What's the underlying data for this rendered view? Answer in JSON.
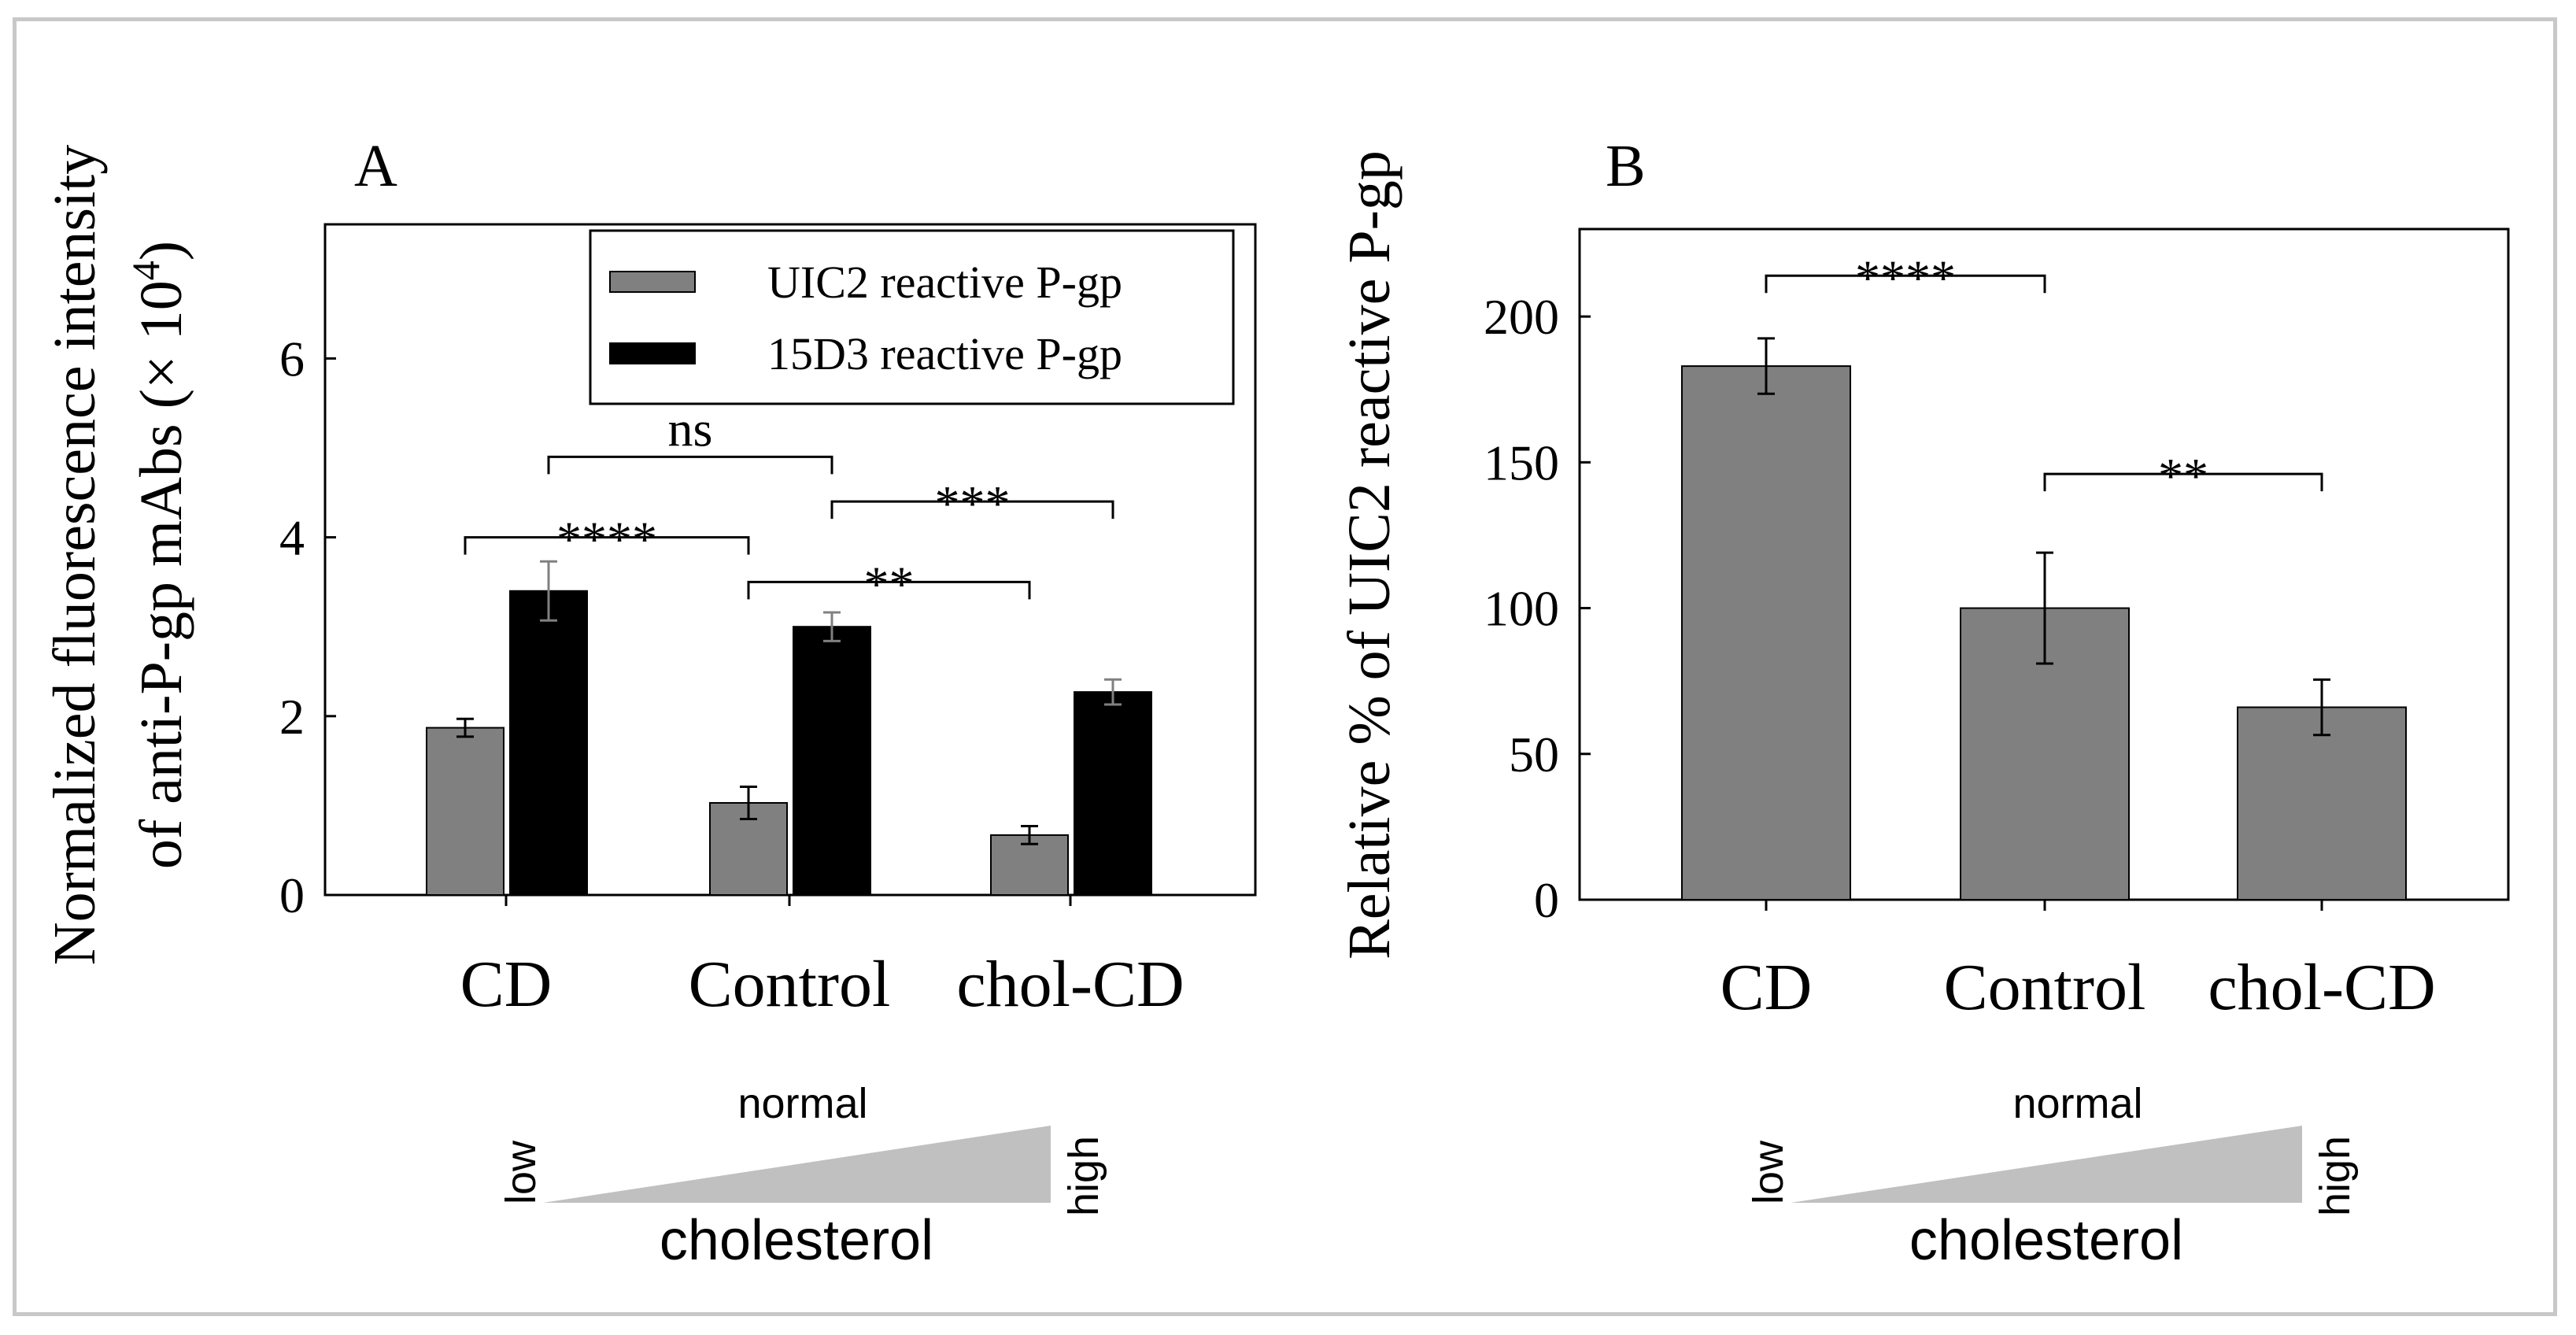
{
  "chart_data": [
    {
      "type": "bar",
      "panel_label": "A",
      "title": "",
      "xlabel": "",
      "ylabel_line1": "Normalized fluorescence intensity",
      "ylabel_line2": "of anti-P-gp mAbs (× 10",
      "ylabel_sup": "4",
      "ylabel_end": ")",
      "categories": [
        "CD",
        "Control",
        "chol-CD"
      ],
      "ylim": [
        0,
        7.5
      ],
      "yticks": [
        "0",
        "2",
        "4",
        "6"
      ],
      "series": [
        {
          "name": "UIC2 reactive P-gp",
          "color": "#808080",
          "values": [
            1.87,
            1.03,
            0.67
          ],
          "errors": [
            0.1,
            0.18,
            0.1
          ]
        },
        {
          "name": "15D3 reactive P-gp",
          "color": "#000000",
          "values": [
            3.4,
            3.0,
            2.27
          ],
          "errors": [
            0.33,
            0.16,
            0.14
          ]
        }
      ],
      "significance": [
        {
          "label": "ns",
          "from": "CD 15D3",
          "to": "Control 15D3",
          "level": 4.9
        },
        {
          "label": "****",
          "from": "CD UIC2",
          "to": "Control UIC2",
          "level": 4.0
        },
        {
          "label": "***",
          "from": "Control 15D3",
          "to": "chol-CD 15D3",
          "level": 4.4
        },
        {
          "label": "**",
          "from": "Control UIC2",
          "to": "chol-CD UIC2",
          "level": 3.5
        }
      ],
      "gradient": {
        "low": "low",
        "normal": "normal",
        "high": "high",
        "caption": "cholesterol"
      }
    },
    {
      "type": "bar",
      "panel_label": "B",
      "title": "",
      "xlabel": "",
      "ylabel": "Relative % of UIC2 reactive P-gp",
      "categories": [
        "CD",
        "Control",
        "chol-CD"
      ],
      "ylim": [
        0,
        230
      ],
      "yticks": [
        "0",
        "50",
        "100",
        "150",
        "200"
      ],
      "series": [
        {
          "name": "UIC2 reactive P-gp",
          "color": "#808080",
          "values": [
            183,
            100,
            66
          ],
          "errors": [
            9.5,
            19,
            9.5
          ]
        }
      ],
      "significance": [
        {
          "label": "****",
          "from": "CD",
          "to": "Control",
          "level": 214
        },
        {
          "label": "**",
          "from": "Control",
          "to": "chol-CD",
          "level": 146
        }
      ],
      "gradient": {
        "low": "low",
        "normal": "normal",
        "high": "high",
        "caption": "cholesterol"
      }
    }
  ]
}
